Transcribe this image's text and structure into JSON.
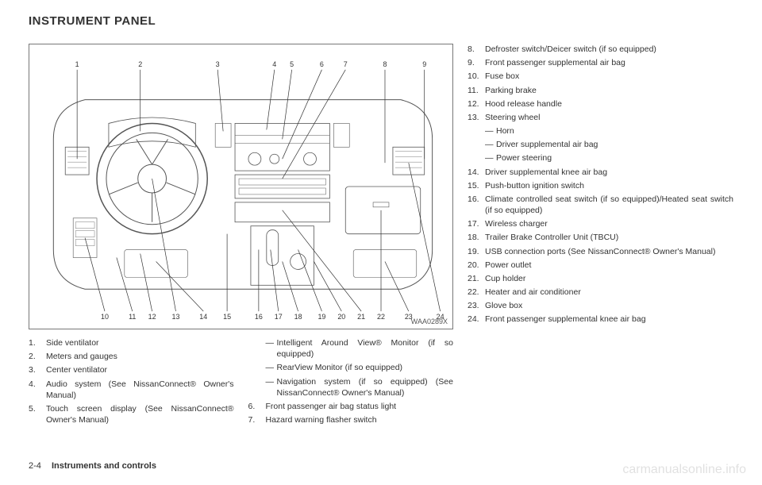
{
  "page": {
    "title": "INSTRUMENT PANEL",
    "footer_page": "2-4",
    "footer_section": "Instruments and controls",
    "watermark": "carmanualsonline.info"
  },
  "diagram": {
    "code": "WAA0289X",
    "top_callouts": [
      "1",
      "2",
      "3",
      "4",
      "5",
      "6",
      "7",
      "8",
      "9"
    ],
    "bottom_callouts": [
      "10",
      "11",
      "12",
      "13",
      "14",
      "15",
      "16",
      "17",
      "18",
      "19",
      "20",
      "21",
      "22",
      "23",
      "24"
    ],
    "top_x": [
      60,
      140,
      238,
      310,
      332,
      370,
      400,
      450,
      500
    ],
    "bottom_x": [
      95,
      130,
      155,
      185,
      220,
      250,
      290,
      315,
      340,
      370,
      395,
      420,
      445,
      480,
      520
    ]
  },
  "col1": [
    {
      "n": "1.",
      "t": "Side ventilator"
    },
    {
      "n": "2.",
      "t": "Meters and gauges"
    },
    {
      "n": "3.",
      "t": "Center ventilator"
    },
    {
      "n": "4.",
      "t": "Audio system (See NissanConnect® Owner's Manual)"
    },
    {
      "n": "5.",
      "t": "Touch screen display (See NissanConnect® Owner's Manual)"
    }
  ],
  "col2": [
    {
      "sub": true,
      "t": "Intelligent Around View® Monitor (if so equipped)"
    },
    {
      "sub": true,
      "t": "RearView Monitor (if so equipped)"
    },
    {
      "sub": true,
      "t": "Navigation system (if so equipped) (See NissanConnect® Owner's Manual)"
    },
    {
      "n": "6.",
      "t": "Front passenger air bag status light"
    },
    {
      "n": "7.",
      "t": "Hazard warning flasher switch"
    }
  ],
  "col3": [
    {
      "n": "8.",
      "t": "Defroster switch/Deicer switch (if so equipped)"
    },
    {
      "n": "9.",
      "t": "Front passenger supplemental air bag"
    },
    {
      "n": "10.",
      "t": "Fuse box"
    },
    {
      "n": "11.",
      "t": "Parking brake"
    },
    {
      "n": "12.",
      "t": "Hood release handle"
    },
    {
      "n": "13.",
      "t": "Steering wheel"
    },
    {
      "sub": true,
      "t": "Horn"
    },
    {
      "sub": true,
      "t": "Driver supplemental air bag"
    },
    {
      "sub": true,
      "t": "Power steering"
    },
    {
      "n": "14.",
      "t": "Driver supplemental knee air bag"
    },
    {
      "n": "15.",
      "t": "Push-button ignition switch"
    },
    {
      "n": "16.",
      "t": "Climate controlled seat switch (if so equipped)/Heated seat switch (if so equipped)"
    },
    {
      "n": "17.",
      "t": "Wireless charger"
    },
    {
      "n": "18.",
      "t": "Trailer Brake Controller Unit (TBCU)"
    },
    {
      "n": "19.",
      "t": "USB connection ports (See NissanConnect® Owner's Manual)"
    },
    {
      "n": "20.",
      "t": "Power outlet"
    },
    {
      "n": "21.",
      "t": "Cup holder"
    },
    {
      "n": "22.",
      "t": "Heater and air conditioner"
    },
    {
      "n": "23.",
      "t": "Glove box"
    },
    {
      "n": "24.",
      "t": "Front passenger supplemental knee air bag"
    }
  ]
}
